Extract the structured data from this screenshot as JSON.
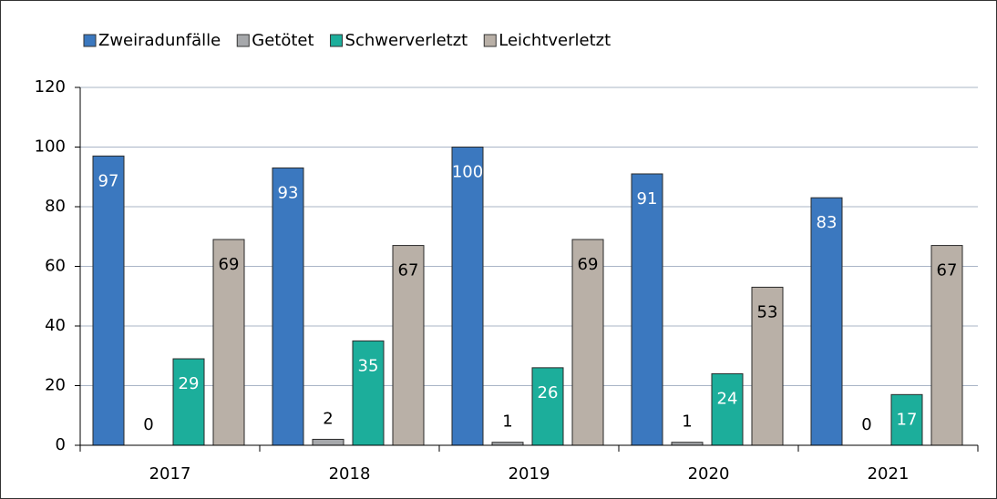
{
  "chart_data": {
    "type": "bar",
    "categories": [
      "2017",
      "2018",
      "2019",
      "2020",
      "2021"
    ],
    "series": [
      {
        "name": "Zweiradunfälle",
        "color": "#3b78bf",
        "values": [
          97,
          93,
          100,
          91,
          83
        ]
      },
      {
        "name": "Getötet",
        "color": "#a6a8ab",
        "values": [
          0,
          2,
          1,
          1,
          0
        ]
      },
      {
        "name": "Schwerverletzt",
        "color": "#1cae9b",
        "values": [
          29,
          35,
          26,
          24,
          17
        ]
      },
      {
        "name": "Leichtverletzt",
        "color": "#b9b0a7",
        "values": [
          69,
          67,
          69,
          53,
          67
        ]
      }
    ],
    "ylim": [
      0,
      120
    ],
    "yticks": [
      0,
      20,
      40,
      60,
      80,
      100,
      120
    ],
    "grid": true,
    "legend": "top"
  }
}
